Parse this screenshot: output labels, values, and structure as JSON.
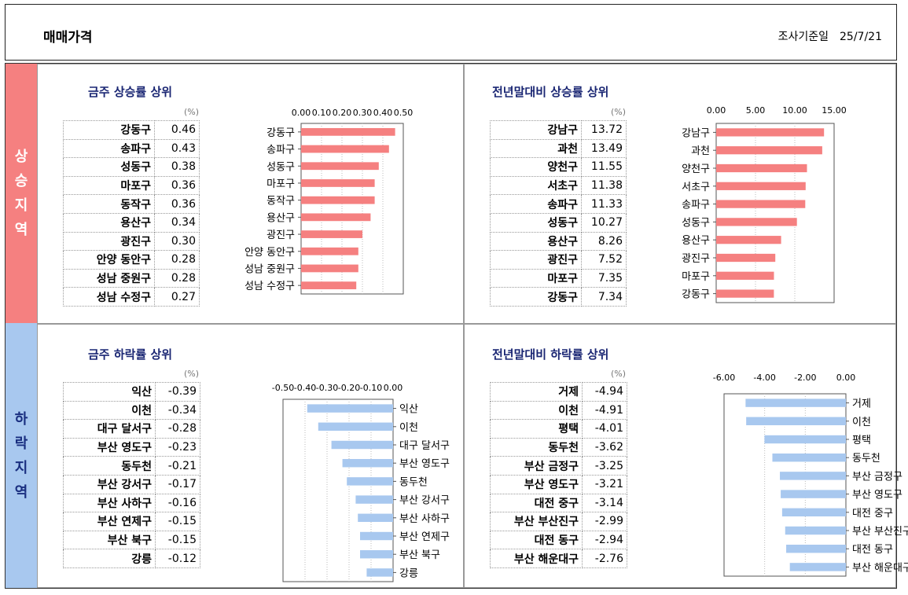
{
  "header": {
    "title": "매매가격",
    "date_label": "조사기준일",
    "date_value": "25/7/21"
  },
  "side": {
    "rise": [
      "상",
      "승",
      "지",
      "역"
    ],
    "fall": [
      "하",
      "락",
      "지",
      "역"
    ]
  },
  "unit": "(%)",
  "colors": {
    "rise_bar": "#f58080",
    "fall_bar": "#a8c8ef",
    "rise_side": "#f58080",
    "fall_side": "#a8c8ef"
  },
  "panels": {
    "weekly_rise": {
      "title": "금주 상승률 상위"
    },
    "ytd_rise": {
      "title": "전년말대비 상승률 상위"
    },
    "weekly_fall": {
      "title": "금주 하락률 상위"
    },
    "ytd_fall": {
      "title": "전년말대비 하락률 상위"
    }
  },
  "chart_data": [
    {
      "id": "weekly_rise",
      "type": "bar",
      "orientation": "horizontal",
      "title": "금주 상승률 상위",
      "categories": [
        "강동구",
        "송파구",
        "성동구",
        "마포구",
        "동작구",
        "용산구",
        "광진구",
        "안양 동안구",
        "성남 중원구",
        "성남 수정구"
      ],
      "values": [
        0.46,
        0.43,
        0.38,
        0.36,
        0.36,
        0.34,
        0.3,
        0.28,
        0.28,
        0.27
      ],
      "display": [
        "0.46",
        "0.43",
        "0.38",
        "0.36",
        "0.36",
        "0.34",
        "0.30",
        "0.28",
        "0.28",
        "0.27"
      ],
      "xlim": [
        0,
        0.5
      ],
      "ticks": [
        "0.00",
        "0.10",
        "0.20",
        "0.30",
        "0.40",
        "0.50"
      ],
      "tick_values": [
        0,
        0.1,
        0.2,
        0.3,
        0.4,
        0.5
      ]
    },
    {
      "id": "ytd_rise",
      "type": "bar",
      "orientation": "horizontal",
      "title": "전년말대비 상승률 상위",
      "categories": [
        "강남구",
        "과천",
        "양천구",
        "서초구",
        "송파구",
        "성동구",
        "용산구",
        "광진구",
        "마포구",
        "강동구"
      ],
      "values": [
        13.72,
        13.49,
        11.55,
        11.38,
        11.33,
        10.27,
        8.26,
        7.52,
        7.35,
        7.34
      ],
      "display": [
        "13.72",
        "13.49",
        "11.55",
        "11.38",
        "11.33",
        "10.27",
        "8.26",
        "7.52",
        "7.35",
        "7.34"
      ],
      "xlim": [
        0,
        15
      ],
      "ticks": [
        "0.00",
        "5.00",
        "10.00",
        "15.00"
      ],
      "tick_values": [
        0,
        5,
        10,
        15
      ]
    },
    {
      "id": "weekly_fall",
      "type": "bar",
      "orientation": "horizontal",
      "title": "금주 하락률 상위",
      "categories": [
        "익산",
        "이천",
        "대구 달서구",
        "부산 영도구",
        "동두천",
        "부산 강서구",
        "부산 사하구",
        "부산 연제구",
        "부산 북구",
        "강릉"
      ],
      "values": [
        -0.39,
        -0.34,
        -0.28,
        -0.23,
        -0.21,
        -0.17,
        -0.16,
        -0.15,
        -0.15,
        -0.12
      ],
      "display": [
        "-0.39",
        "-0.34",
        "-0.28",
        "-0.23",
        "-0.21",
        "-0.17",
        "-0.16",
        "-0.15",
        "-0.15",
        "-0.12"
      ],
      "xlim": [
        -0.5,
        0
      ],
      "ticks": [
        "-0.50",
        "-0.40",
        "-0.30",
        "-0.20",
        "-0.10",
        "0.00"
      ],
      "tick_values": [
        -0.5,
        -0.4,
        -0.3,
        -0.2,
        -0.1,
        0
      ]
    },
    {
      "id": "ytd_fall",
      "type": "bar",
      "orientation": "horizontal",
      "title": "전년말대비 하락률 상위",
      "categories": [
        "거제",
        "이천",
        "평택",
        "동두천",
        "부산 금정구",
        "부산 영도구",
        "대전 중구",
        "부산 부산진구",
        "대전 동구",
        "부산 해운대구"
      ],
      "values": [
        -4.94,
        -4.91,
        -4.01,
        -3.62,
        -3.25,
        -3.21,
        -3.14,
        -2.99,
        -2.94,
        -2.76
      ],
      "display": [
        "-4.94",
        "-4.91",
        "-4.01",
        "-3.62",
        "-3.25",
        "-3.21",
        "-3.14",
        "-2.99",
        "-2.94",
        "-2.76"
      ],
      "xlim": [
        -6,
        0
      ],
      "ticks": [
        "-6.00",
        "-4.00",
        "-2.00",
        "0.00"
      ],
      "tick_values": [
        -6,
        -4,
        -2,
        0
      ]
    }
  ]
}
